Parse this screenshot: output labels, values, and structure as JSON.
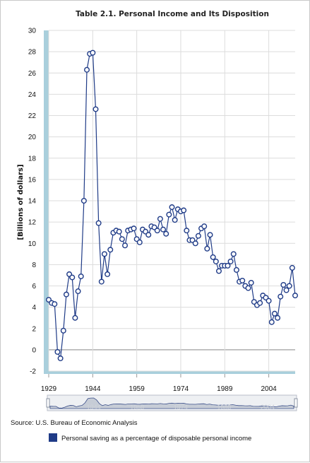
{
  "chart_data": {
    "type": "line",
    "title": "Table 2.1. Personal Income and Its Disposition",
    "ylabel": "[Billions of dollars]",
    "xlabel": "",
    "ylim": [
      -2,
      30
    ],
    "yticks": [
      -2,
      0,
      2,
      4,
      6,
      8,
      10,
      12,
      14,
      16,
      18,
      20,
      22,
      24,
      26,
      28,
      30
    ],
    "xlim": [
      1929,
      2013
    ],
    "xticks": [
      1929,
      1944,
      1959,
      1974,
      1989,
      2004
    ],
    "grid": true,
    "legend_position": "bottom",
    "source": "Source: U.S. Bureau of Economic Analysis",
    "navigator_ticks": [
      "1944",
      "1959",
      "1974",
      "1989",
      "2004"
    ],
    "series": [
      {
        "name": "Personal saving as a percentage of disposable personal income",
        "color": "#1f3b87",
        "x": [
          1929,
          1930,
          1931,
          1932,
          1933,
          1934,
          1935,
          1936,
          1937,
          1938,
          1939,
          1940,
          1941,
          1942,
          1943,
          1944,
          1945,
          1946,
          1947,
          1948,
          1949,
          1950,
          1951,
          1952,
          1953,
          1954,
          1955,
          1956,
          1957,
          1958,
          1959,
          1960,
          1961,
          1962,
          1963,
          1964,
          1965,
          1966,
          1967,
          1968,
          1969,
          1970,
          1971,
          1972,
          1973,
          1974,
          1975,
          1976,
          1977,
          1978,
          1979,
          1980,
          1981,
          1982,
          1983,
          1984,
          1985,
          1986,
          1987,
          1988,
          1989,
          1990,
          1991,
          1992,
          1993,
          1994,
          1995,
          1996,
          1997,
          1998,
          1999,
          2000,
          2001,
          2002,
          2003,
          2004,
          2005,
          2006,
          2007,
          2008,
          2009,
          2010,
          2011,
          2012,
          2013
        ],
        "values": [
          4.7,
          4.4,
          4.3,
          -0.2,
          -0.8,
          1.8,
          5.2,
          7.1,
          6.8,
          3.0,
          5.5,
          6.9,
          14.0,
          26.3,
          27.8,
          27.9,
          22.6,
          11.9,
          6.4,
          9.0,
          7.1,
          9.4,
          11.0,
          11.2,
          11.1,
          10.4,
          9.8,
          11.2,
          11.3,
          11.4,
          10.4,
          10.1,
          11.3,
          11.1,
          10.8,
          11.6,
          11.5,
          11.2,
          12.3,
          11.3,
          10.9,
          12.7,
          13.4,
          12.2,
          13.2,
          13.0,
          13.1,
          11.2,
          10.3,
          10.3,
          10.0,
          10.7,
          11.4,
          11.6,
          9.5,
          10.8,
          8.7,
          8.3,
          7.4,
          7.9,
          7.9,
          7.9,
          8.3,
          9.0,
          7.5,
          6.4,
          6.5,
          6.0,
          5.8,
          6.3,
          4.5,
          4.2,
          4.4,
          5.1,
          4.9,
          4.6,
          2.6,
          3.4,
          3.0,
          5.0,
          6.1,
          5.6,
          6.0,
          7.7,
          5.1
        ]
      }
    ]
  }
}
